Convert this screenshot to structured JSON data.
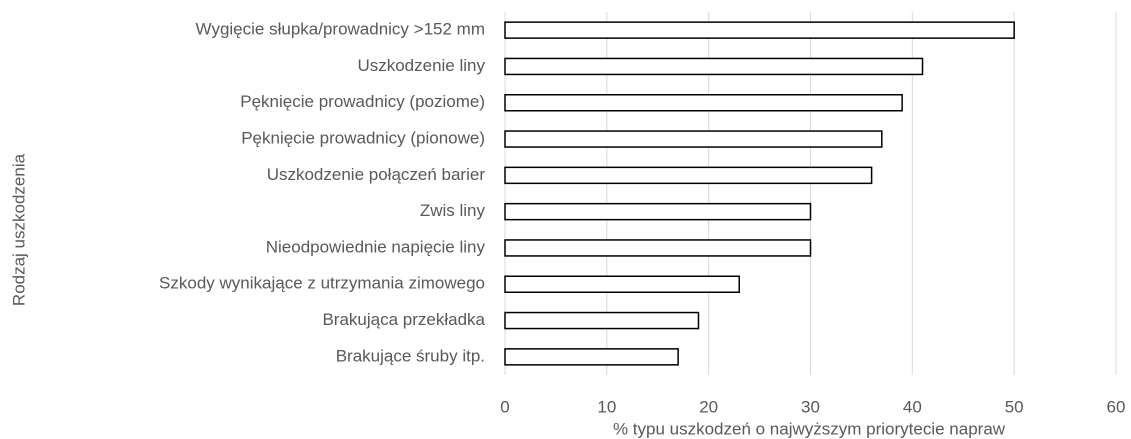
{
  "chart_data": {
    "type": "barh",
    "xlabel": "% typu uszkodzeń o najwyższym priorytecie napraw",
    "ylabel": "Rodzaj uszkodzenia",
    "categories": [
      "Wygięcie słupka/prowadnicy >152 mm",
      "Uszkodzenie liny",
      "Pęknięcie prowadnicy (poziome)",
      "Pęknięcie prowadnicy (pionowe)",
      "Uszkodzenie połączeń barier",
      "Zwis liny",
      "Nieodpowiednie napięcie liny",
      "Szkody wynikające z utrzymania zimowego",
      "Brakująca przekładka",
      "Brakujące śruby itp."
    ],
    "values": [
      50,
      41,
      39,
      37,
      36,
      30,
      30,
      23,
      19,
      17
    ],
    "color": "#ffffff",
    "edgecolor": "#000000",
    "xlim": [
      0,
      60
    ],
    "xticks": [
      0,
      10,
      20,
      30,
      40,
      50,
      60
    ],
    "grid": true
  }
}
